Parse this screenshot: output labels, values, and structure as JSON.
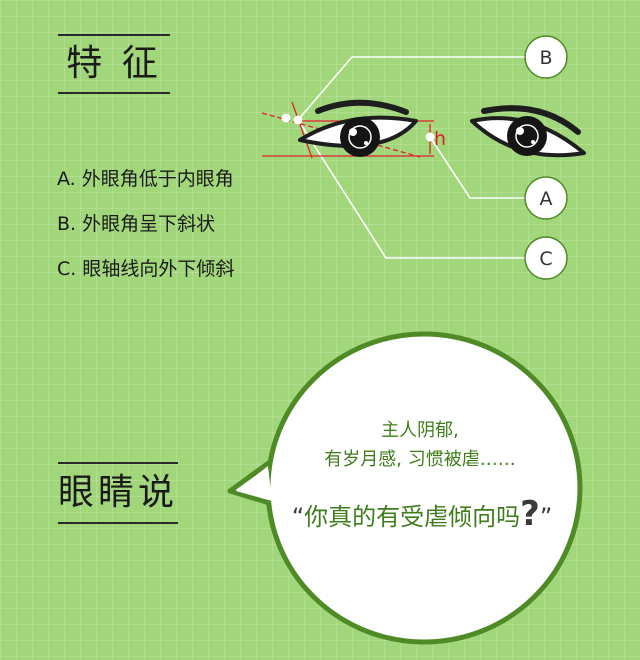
{
  "section1": {
    "title": "特 征",
    "features": [
      "A. 外眼角低于内眼角",
      "B. 外眼角呈下斜状",
      "C. 眼轴线向外下倾斜"
    ]
  },
  "diagram": {
    "badges": [
      "B",
      "A",
      "C"
    ],
    "height_label": "h"
  },
  "section2": {
    "title": "眼睛说"
  },
  "bubble": {
    "line1": "主人阴郁,",
    "line2": "有岁月感, 习惯被虐……",
    "open_quote": "“",
    "question": "你真的有受虐倾向吗",
    "question_mark": "?",
    "close_quote": "”"
  },
  "colors": {
    "background": "#a2d67b",
    "accent_green": "#3f7d1c",
    "guide_red": "#e0202a"
  }
}
